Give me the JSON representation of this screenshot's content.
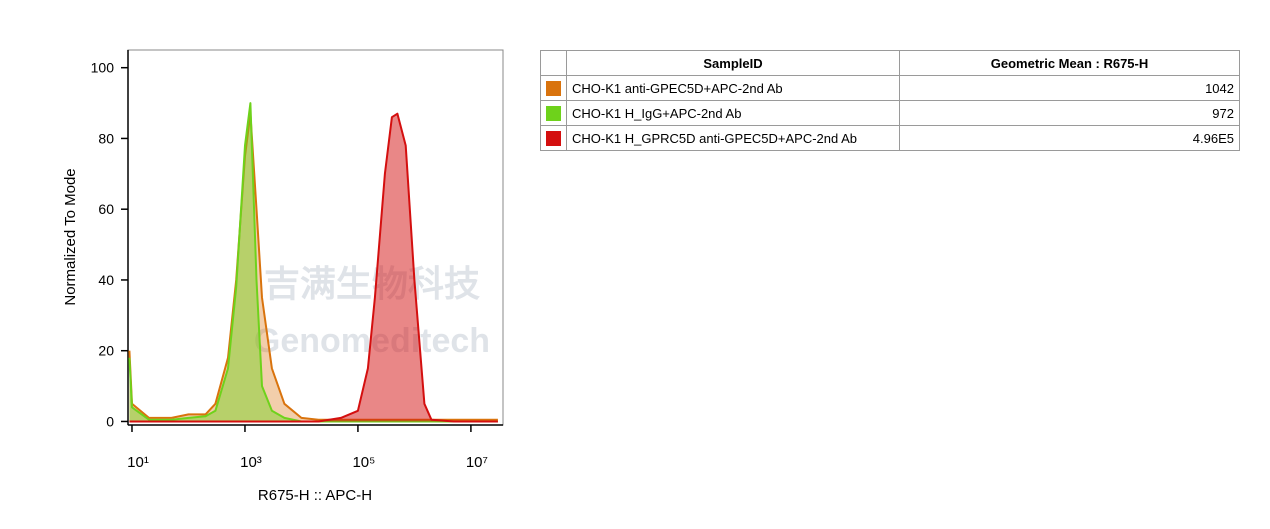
{
  "chart_data": {
    "type": "area",
    "xlabel": "R675-H :: APC-H",
    "ylabel": "Normalized To Mode",
    "watermark": [
      "吉满生物科技",
      "Genomeditech"
    ],
    "xscale": "log",
    "xlim": [
      8.5,
      37000000
    ],
    "xticks": [
      {
        "value": 10,
        "label": "10¹"
      },
      {
        "value": 1000,
        "label": "10³"
      },
      {
        "value": 100000,
        "label": "10⁵"
      },
      {
        "value": 10000000,
        "label": "10⁷"
      }
    ],
    "ylim": [
      -1,
      105
    ],
    "yticks": [
      0,
      20,
      40,
      60,
      80,
      100
    ],
    "x": [
      9,
      10,
      20,
      50,
      100,
      200,
      300,
      500,
      700,
      1000,
      1250,
      1600,
      2000,
      3000,
      5000,
      10000,
      20000,
      50000,
      100000,
      150000,
      200000,
      300000,
      400000,
      500000,
      700000,
      1000000,
      1500000,
      2000000,
      5000000,
      30000000
    ],
    "series": [
      {
        "name": "CHO-K1 anti-GPEC5D+APC-2nd Ab",
        "color": "#d9730d",
        "values": [
          20,
          5,
          1,
          1,
          2,
          2,
          5,
          18,
          40,
          75,
          87,
          60,
          35,
          15,
          5,
          1,
          0.5,
          0.5,
          0.5,
          0.5,
          0.5,
          0.5,
          0.5,
          0.5,
          0.5,
          0.5,
          0.5,
          0.5,
          0.5,
          0.5
        ]
      },
      {
        "name": "CHO-K1 H_IgG+APC-2nd Ab",
        "color": "#6ed21b",
        "values": [
          18,
          4,
          0.5,
          0.5,
          1,
          1.5,
          3,
          15,
          38,
          78,
          90,
          40,
          10,
          3,
          1,
          0,
          0,
          0,
          0,
          0,
          0,
          0,
          0,
          0,
          0,
          0,
          0,
          0,
          0,
          0
        ]
      },
      {
        "name": "CHO-K1 H_GPRC5D anti-GPEC5D+APC-2nd Ab",
        "color": "#d40f0f",
        "values": [
          0,
          0,
          0,
          0,
          0,
          0,
          0,
          0,
          0,
          0,
          0,
          0,
          0,
          0,
          0,
          0,
          0,
          1,
          3,
          15,
          35,
          70,
          86,
          87,
          78,
          40,
          5,
          0.5,
          0,
          0
        ]
      }
    ]
  },
  "table": {
    "header": [
      "SampleID",
      "Geometric Mean : R675-H"
    ],
    "geometric_means": [
      "1042",
      "972",
      "4.96E5"
    ]
  }
}
